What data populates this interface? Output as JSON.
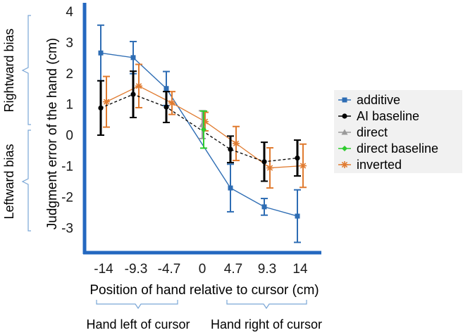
{
  "chart_data": {
    "type": "line",
    "xlabel": "Position of hand relative to cursor (cm)",
    "ylabel": "Judgment error of the hand (cm)",
    "x_ticks": [
      "-14",
      "-9.3",
      "-4.7",
      "0",
      "4.7",
      "9.3",
      "14"
    ],
    "y_ticks": [
      "4",
      "3",
      "2",
      "1",
      "0",
      "-1",
      "-2",
      "-3"
    ],
    "ylim": [
      -3.6,
      4
    ],
    "legend_position": "right",
    "series": [
      {
        "name": "additive",
        "color": "#2e6db4",
        "marker": "square",
        "dashed": false,
        "x": [
          -14,
          -9.3,
          -4.7,
          4.7,
          9.3,
          14
        ],
        "y": [
          2.65,
          2.5,
          1.5,
          -1.72,
          -2.33,
          -2.63
        ],
        "err": [
          0.9,
          0.52,
          0.55,
          0.77,
          0.27,
          0.85
        ]
      },
      {
        "name": "AI baseline",
        "color": "#000000",
        "marker": "circle",
        "dashed": true,
        "x": [
          -14,
          -9.3,
          -4.7,
          4.7,
          9.3,
          14
        ],
        "y": [
          0.87,
          1.31,
          0.9,
          -0.47,
          -0.87,
          -0.75
        ],
        "err": [
          0.88,
          0.75,
          0.5,
          0.43,
          0.63,
          0.58
        ]
      },
      {
        "name": "direct",
        "color": "#9a9a9a",
        "marker": "triangle",
        "dashed": false,
        "x": [
          0
        ],
        "y": [
          0.33
        ],
        "err": [
          0.45
        ]
      },
      {
        "name": "direct baseline",
        "color": "#2ecc2e",
        "marker": "diamond",
        "dashed": false,
        "x": [
          0
        ],
        "y": [
          0.17
        ],
        "err": [
          0.6
        ]
      },
      {
        "name": "inverted",
        "color": "#e07b30",
        "marker": "star",
        "dashed": false,
        "x": [
          -14,
          -9.3,
          -4.7,
          0,
          4.7,
          9.3,
          14
        ],
        "y": [
          1.07,
          1.58,
          1.03,
          0.43,
          -0.28,
          -1.07,
          -1.0
        ],
        "err": [
          0.82,
          0.7,
          0.37,
          0.3,
          0.55,
          0.65,
          0.7
        ]
      }
    ],
    "annotations": {
      "left_region": "Rightward bias",
      "left_region_2": "Leftward bias",
      "bottom_left": "Hand left of cursor",
      "bottom_right": "Hand right of cursor"
    }
  }
}
